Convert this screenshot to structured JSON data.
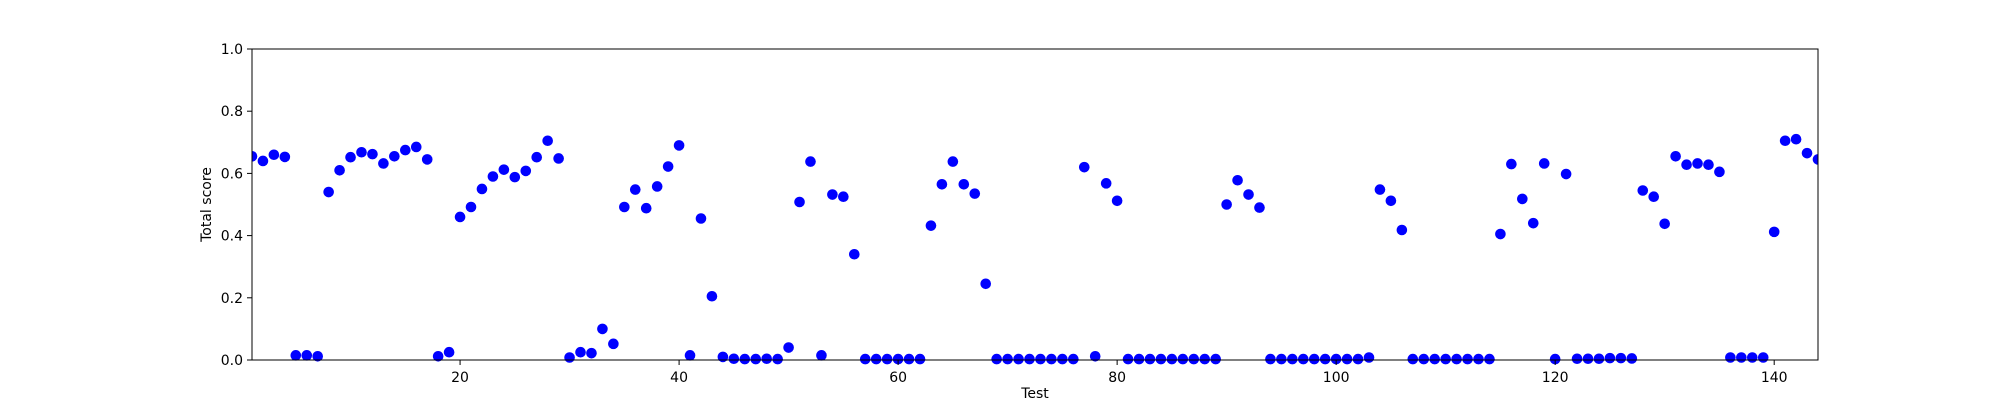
{
  "chart_data": {
    "type": "scatter",
    "title": "",
    "xlabel": "Test",
    "ylabel": "Total score",
    "xlim": [
      1,
      144
    ],
    "ylim": [
      0.0,
      1.0
    ],
    "x_ticks": [
      20,
      40,
      60,
      80,
      100,
      120,
      140
    ],
    "x_tick_labels": [
      "20",
      "40",
      "60",
      "80",
      "100",
      "120",
      "140"
    ],
    "y_ticks": [
      0.0,
      0.2,
      0.4,
      0.6,
      0.8,
      1.0
    ],
    "y_tick_labels": [
      "0.0",
      "0.2",
      "0.4",
      "0.6",
      "0.8",
      "1.0"
    ],
    "grid": false,
    "marker_color": "#0000ff",
    "series": [
      {
        "x": [
          1,
          2,
          3,
          4,
          5,
          6,
          7,
          8,
          9,
          10,
          11,
          12,
          13,
          14,
          15,
          16,
          17,
          18,
          19,
          20,
          21,
          22,
          23,
          24,
          25,
          26,
          27,
          28,
          29,
          30,
          31,
          32,
          33,
          34,
          35,
          36,
          37,
          38,
          39,
          40,
          41,
          42,
          43,
          44,
          45,
          46,
          47,
          48,
          49,
          50,
          51,
          52,
          53,
          54,
          55,
          56,
          57,
          58,
          59,
          60,
          61,
          62,
          63,
          64,
          65,
          66,
          67,
          68,
          69,
          70,
          71,
          72,
          73,
          74,
          75,
          76,
          77,
          78,
          79,
          80,
          81,
          82,
          83,
          84,
          85,
          86,
          87,
          88,
          89,
          90,
          91,
          92,
          93,
          94,
          95,
          96,
          97,
          98,
          99,
          100,
          101,
          102,
          103,
          104,
          105,
          106,
          107,
          108,
          109,
          110,
          111,
          112,
          113,
          114,
          115,
          116,
          117,
          118,
          119,
          120,
          121,
          122,
          123,
          124,
          125,
          126,
          127,
          128,
          129,
          130,
          131,
          132,
          133,
          134,
          135,
          136,
          137,
          138,
          139,
          140,
          141,
          142,
          143,
          144
        ],
        "y": [
          0.655,
          0.64,
          0.66,
          0.653,
          0.015,
          0.015,
          0.012,
          0.54,
          0.61,
          0.652,
          0.668,
          0.662,
          0.632,
          0.655,
          0.675,
          0.685,
          0.645,
          0.012,
          0.025,
          0.46,
          0.492,
          0.55,
          0.59,
          0.612,
          0.588,
          0.608,
          0.652,
          0.705,
          0.648,
          0.008,
          0.025,
          0.022,
          0.1,
          0.052,
          0.492,
          0.548,
          0.488,
          0.558,
          0.622,
          0.69,
          0.015,
          0.455,
          0.205,
          0.01,
          0.004,
          0.003,
          0.003,
          0.004,
          0.003,
          0.04,
          0.508,
          0.638,
          0.015,
          0.532,
          0.525,
          0.34,
          0.003,
          0.003,
          0.003,
          0.003,
          0.003,
          0.003,
          0.432,
          0.565,
          0.638,
          0.565,
          0.535,
          0.245,
          0.003,
          0.003,
          0.003,
          0.003,
          0.003,
          0.003,
          0.003,
          0.003,
          0.62,
          0.012,
          0.568,
          0.512,
          0.003,
          0.003,
          0.003,
          0.003,
          0.003,
          0.003,
          0.003,
          0.003,
          0.003,
          0.5,
          0.578,
          0.532,
          0.49,
          0.003,
          0.003,
          0.003,
          0.003,
          0.003,
          0.003,
          0.003,
          0.003,
          0.003,
          0.008,
          0.548,
          0.512,
          0.418,
          0.003,
          0.003,
          0.003,
          0.003,
          0.003,
          0.003,
          0.003,
          0.003,
          0.405,
          0.63,
          0.518,
          0.44,
          0.632,
          0.003,
          0.598,
          0.004,
          0.004,
          0.004,
          0.006,
          0.006,
          0.005,
          0.545,
          0.525,
          0.438,
          0.655,
          0.628,
          0.632,
          0.628,
          0.605,
          0.008,
          0.008,
          0.008,
          0.008,
          0.412,
          0.705,
          0.71,
          0.665,
          0.645
        ]
      }
    ]
  }
}
